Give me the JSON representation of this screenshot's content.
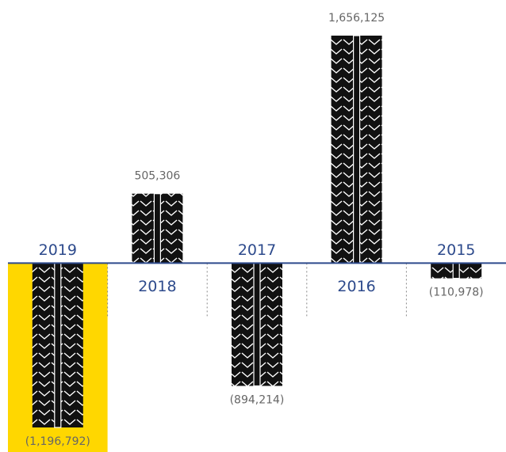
{
  "chart_data": {
    "type": "bar",
    "categories": [
      "2019",
      "2018",
      "2017",
      "2016",
      "2015"
    ],
    "values": [
      -1196792,
      505306,
      -894214,
      1656125,
      -110978
    ],
    "value_labels": [
      "(1,196,792)",
      "505,306",
      "(894,214)",
      "1,656,125",
      "(110,978)"
    ],
    "color": "#111111",
    "highlight_category": "2019",
    "highlight_color": "#ffd700",
    "category_color": "#2d4a8c",
    "value_label_color": "#666666"
  }
}
